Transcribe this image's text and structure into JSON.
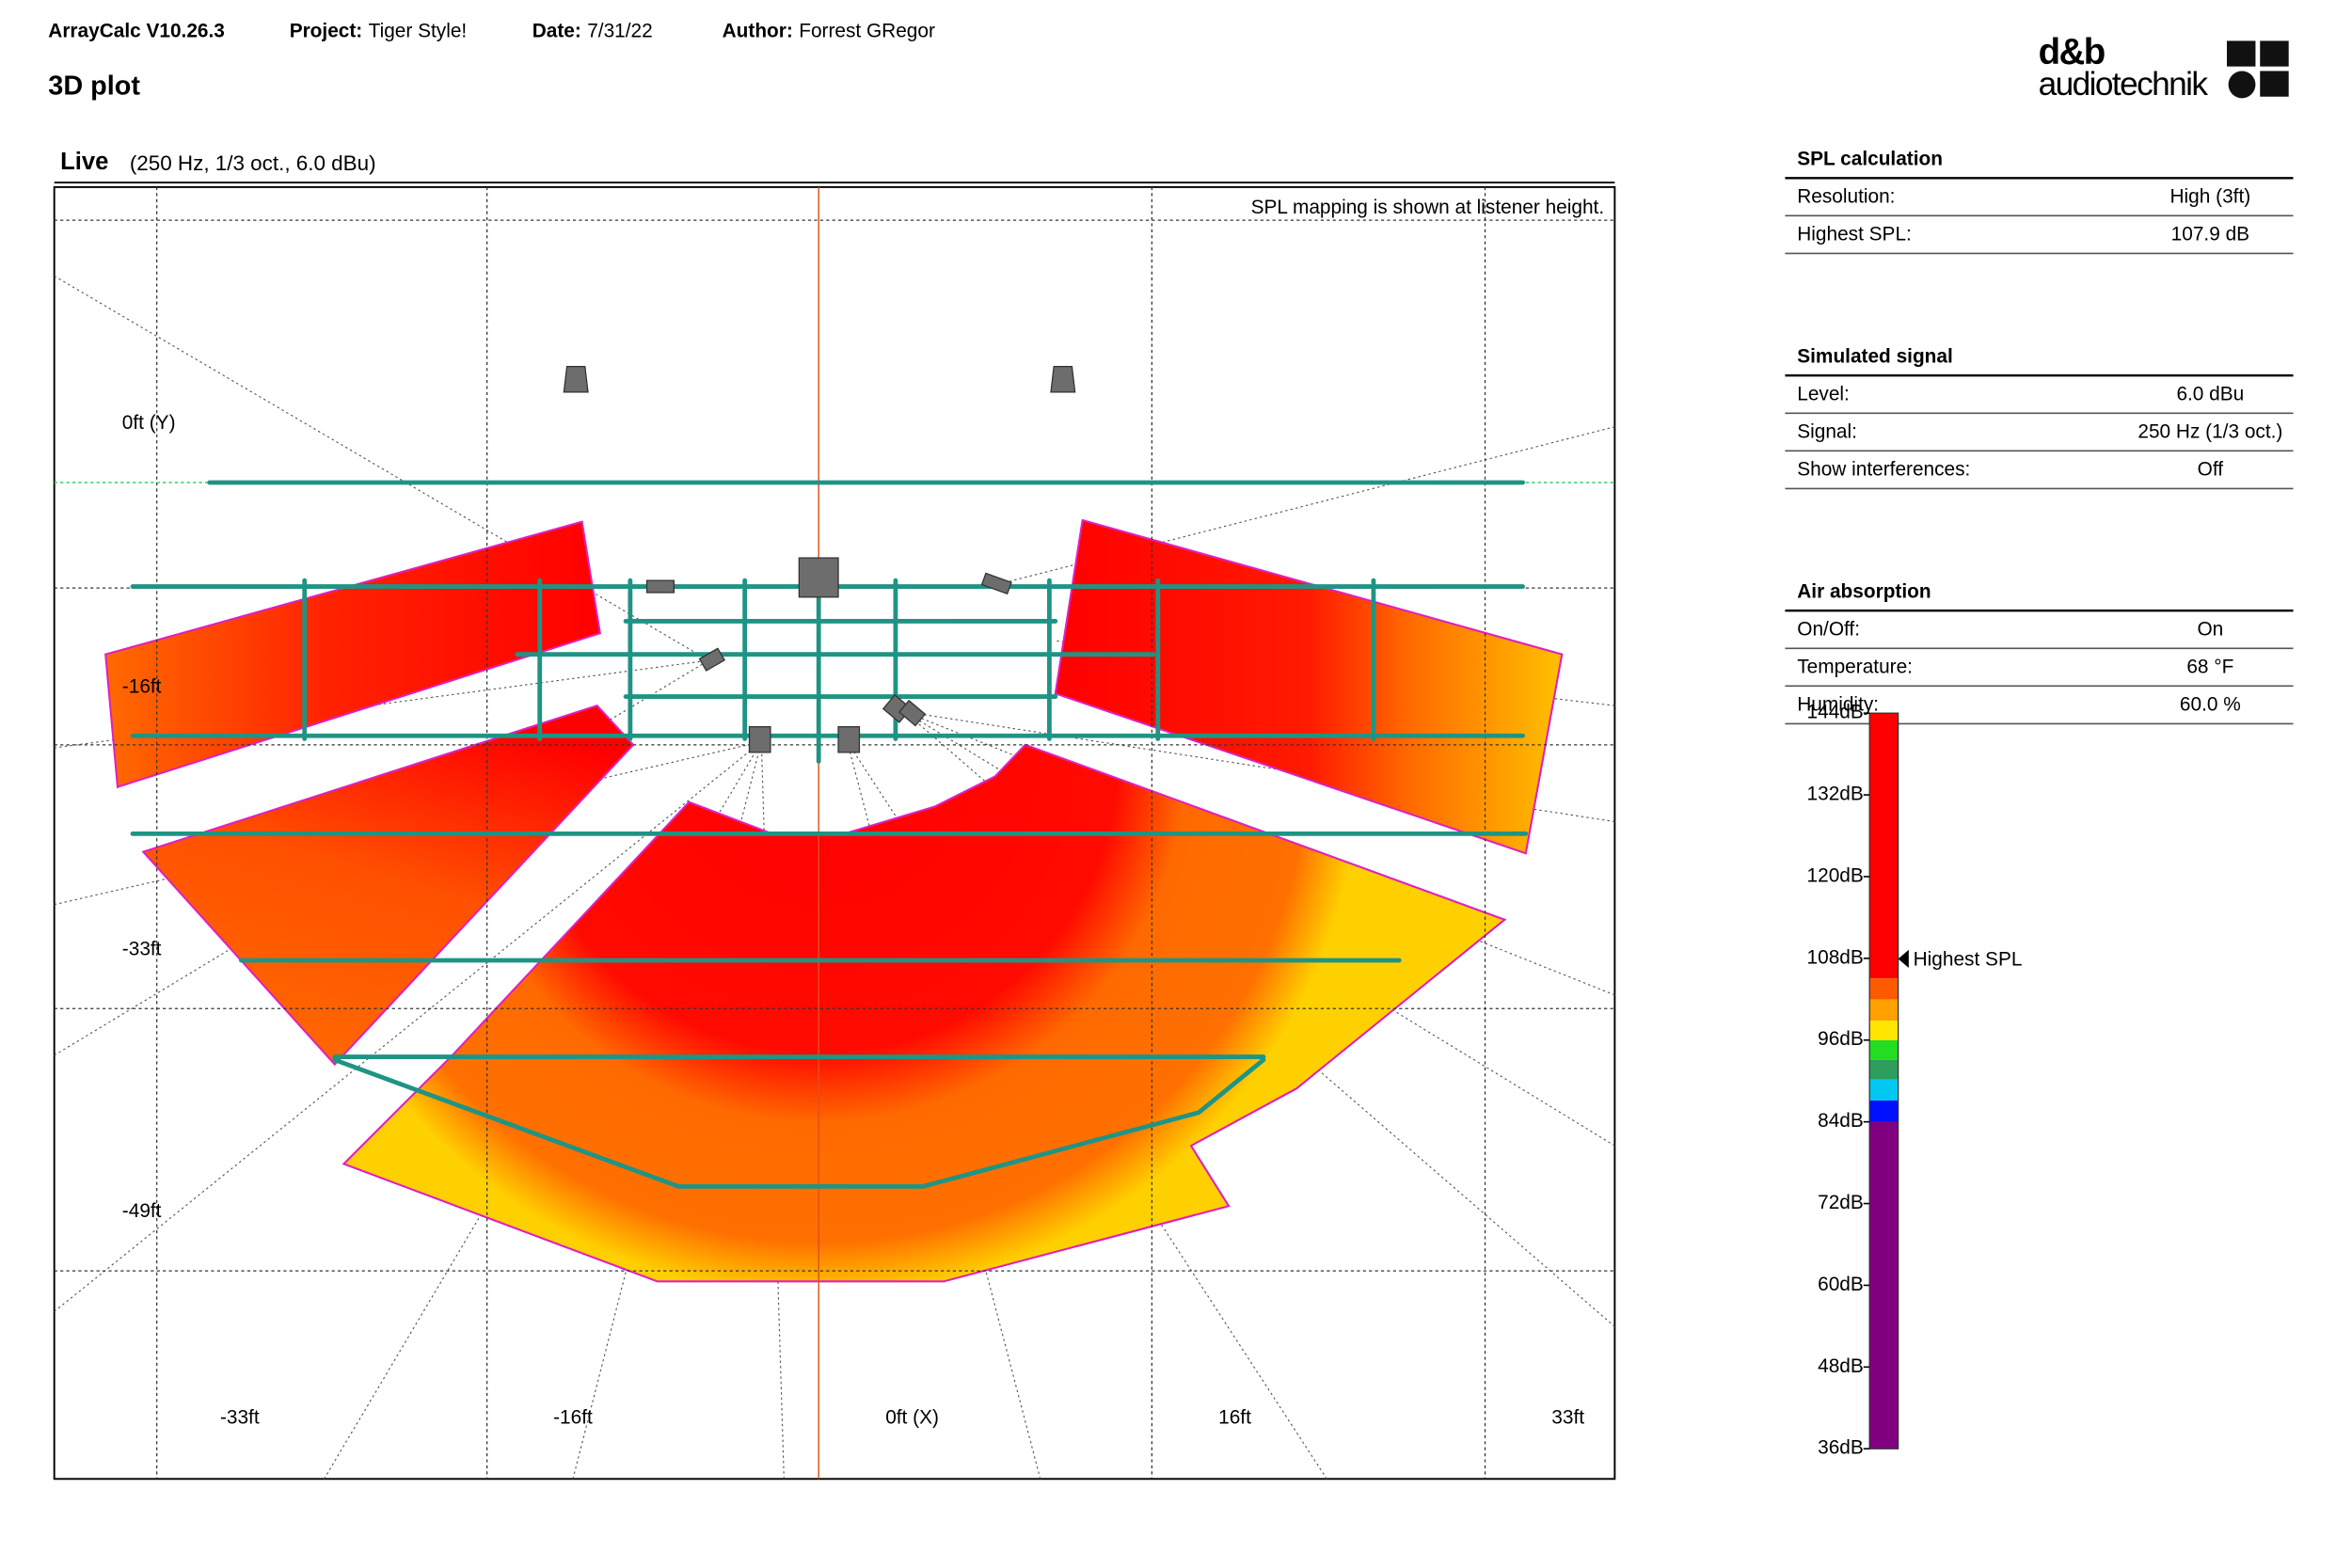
{
  "header": {
    "app": "ArrayCalc V10.26.3",
    "fields": [
      {
        "label": "Project:",
        "value": "Tiger Style!"
      },
      {
        "label": "Date:",
        "value": "7/31/22"
      },
      {
        "label": "Author:",
        "value": "Forrest GRegor"
      }
    ],
    "page_title": "3D plot",
    "logo": {
      "line1": "d&b",
      "line2": "audiotechnik"
    }
  },
  "view": {
    "title": "Live",
    "params": "(250 Hz, 1/3 oct., 6.0 dBu)",
    "note": "SPL mapping is shown at listener height.",
    "x_labels": [
      "-33ft",
      "-16ft",
      "0ft (X)",
      "16ft",
      "33ft"
    ],
    "y_labels": [
      "0ft (Y)",
      "-16ft",
      "-33ft",
      "-49ft"
    ]
  },
  "panel": {
    "sections": [
      {
        "title": "SPL calculation",
        "rows": [
          [
            "Resolution:",
            "High (3ft)"
          ],
          [
            "Highest SPL:",
            "107.9 dB"
          ]
        ]
      },
      {
        "title": "Simulated signal",
        "rows": [
          [
            "Level:",
            "6.0 dBu"
          ],
          [
            "Signal:",
            "250 Hz (1/3 oct.)"
          ],
          [
            "Show interferences:",
            "Off"
          ]
        ]
      },
      {
        "title": "Air absorption",
        "rows": [
          [
            "On/Off:",
            "On"
          ],
          [
            "Temperature:",
            "68 °F"
          ],
          [
            "Humidity:",
            "60.0 %"
          ]
        ]
      }
    ]
  },
  "scale": {
    "labels": [
      "144dB",
      "132dB",
      "120dB",
      "108dB",
      "96dB",
      "84dB",
      "72dB",
      "60dB",
      "48dB",
      "36dB"
    ],
    "marker": "Highest SPL"
  }
}
